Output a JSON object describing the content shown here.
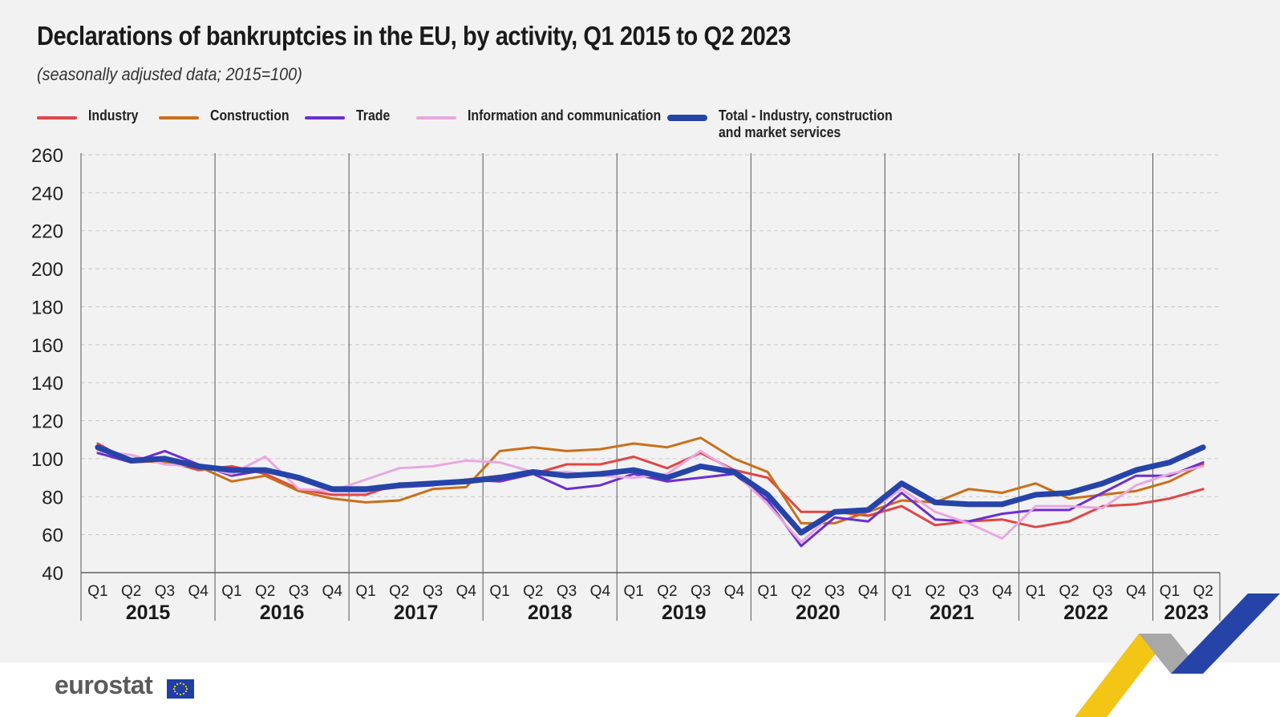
{
  "header": {
    "title": "Declarations of bankruptcies in the EU, by activity, Q1 2015 to Q2 2023",
    "subtitle": "(seasonally adjusted data; 2015=100)"
  },
  "legend": [
    {
      "label": "Industry",
      "color": "#e04646"
    },
    {
      "label": "Construction",
      "color": "#c8701a"
    },
    {
      "label": "Trade",
      "color": "#6b2fd0"
    },
    {
      "label": "Information and communication",
      "color": "#e8a8e0"
    },
    {
      "label_line1": "Total - Industry, construction",
      "label_line2": "and market services",
      "color": "#2644a8"
    }
  ],
  "footer": {
    "logo_text": "eurostat"
  },
  "chart_data": {
    "type": "line",
    "title": "Declarations of bankruptcies in the EU, by activity, Q1 2015 to Q2 2023",
    "subtitle": "(seasonally adjusted data; 2015=100)",
    "ylim": [
      40,
      260
    ],
    "yticks": [
      40,
      60,
      80,
      100,
      120,
      140,
      160,
      180,
      200,
      220,
      240,
      260
    ],
    "grid": "horizontal dashed",
    "legend_position": "top",
    "quarter_labels": [
      "Q1",
      "Q2",
      "Q3",
      "Q4"
    ],
    "years": [
      "2015",
      "2016",
      "2017",
      "2018",
      "2019",
      "2020",
      "2021",
      "2022",
      "2023"
    ],
    "x": [
      "2015Q1",
      "2015Q2",
      "2015Q3",
      "2015Q4",
      "2016Q1",
      "2016Q2",
      "2016Q3",
      "2016Q4",
      "2017Q1",
      "2017Q2",
      "2017Q3",
      "2017Q4",
      "2018Q1",
      "2018Q2",
      "2018Q3",
      "2018Q4",
      "2019Q1",
      "2019Q2",
      "2019Q3",
      "2019Q4",
      "2020Q1",
      "2020Q2",
      "2020Q3",
      "2020Q4",
      "2021Q1",
      "2021Q2",
      "2021Q3",
      "2021Q4",
      "2022Q1",
      "2022Q2",
      "2022Q3",
      "2022Q4",
      "2023Q1",
      "2023Q2"
    ],
    "series": [
      {
        "name": "Industry",
        "color": "#e04646",
        "width": 3,
        "values": [
          108,
          98,
          99,
          94,
          96,
          92,
          84,
          81,
          81,
          87,
          87,
          89,
          91,
          92,
          97,
          97,
          101,
          95,
          103,
          94,
          90,
          72,
          72,
          70,
          75,
          65,
          67,
          68,
          64,
          67,
          75,
          76,
          79,
          84
        ]
      },
      {
        "name": "Construction",
        "color": "#c8701a",
        "width": 3,
        "values": [
          106,
          99,
          98,
          96,
          88,
          91,
          83,
          79,
          77,
          78,
          84,
          85,
          104,
          106,
          104,
          105,
          108,
          106,
          111,
          100,
          93,
          66,
          66,
          72,
          78,
          77,
          84,
          82,
          87,
          79,
          81,
          83,
          88,
          97
        ]
      },
      {
        "name": "Trade",
        "color": "#6b2fd0",
        "width": 3,
        "values": [
          103,
          98,
          104,
          97,
          91,
          94,
          89,
          83,
          83,
          85,
          86,
          89,
          88,
          92,
          84,
          86,
          92,
          88,
          90,
          92,
          78,
          54,
          69,
          67,
          82,
          68,
          67,
          71,
          73,
          73,
          82,
          91,
          91,
          98
        ]
      },
      {
        "name": "Information and communication",
        "color": "#e8a8e0",
        "width": 3,
        "values": [
          104,
          102,
          97,
          96,
          92,
          101,
          84,
          83,
          89,
          95,
          96,
          99,
          98,
          93,
          93,
          91,
          90,
          92,
          104,
          93,
          76,
          56,
          72,
          72,
          84,
          72,
          66,
          58,
          75,
          75,
          74,
          86,
          92,
          96
        ]
      },
      {
        "name": "Total - Industry, construction and market services",
        "color": "#2644a8",
        "width": 7,
        "values": [
          106,
          99,
          100,
          96,
          94,
          94,
          90,
          84,
          84,
          86,
          87,
          88,
          90,
          93,
          91,
          92,
          94,
          90,
          96,
          93,
          81,
          61,
          72,
          73,
          87,
          77,
          76,
          76,
          81,
          82,
          87,
          94,
          98,
          106
        ]
      }
    ]
  }
}
